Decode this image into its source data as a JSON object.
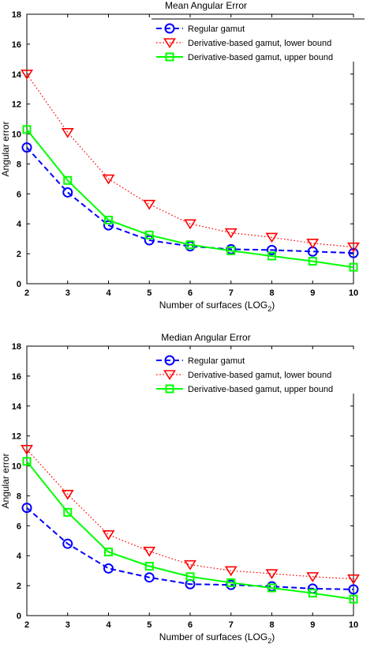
{
  "chart_data": [
    {
      "type": "line",
      "title": "Mean Angular Error",
      "xlabel": "Number of surfaces (LOG",
      "xlabel_sub": "2",
      "xlabel_end": ")",
      "ylabel": "Angular error",
      "xlim": [
        2,
        10
      ],
      "ylim": [
        0,
        18
      ],
      "x": [
        2,
        3,
        4,
        5,
        6,
        7,
        8,
        9,
        10
      ],
      "xticks": [
        "2",
        "3",
        "4",
        "5",
        "6",
        "7",
        "8",
        "9",
        "10"
      ],
      "yticks": [
        "0",
        "2",
        "4",
        "6",
        "8",
        "10",
        "12",
        "14",
        "16",
        "18"
      ],
      "grid": false,
      "legend_position": "top-right",
      "series": [
        {
          "name": "Regular gamut",
          "color": "#0000ff",
          "line": "dashed",
          "marker": "circle",
          "values": [
            9.1,
            6.1,
            3.9,
            2.9,
            2.5,
            2.3,
            2.25,
            2.15,
            2.05
          ]
        },
        {
          "name": "Derivative-based gamut, lower bound",
          "color": "#ff0000",
          "line": "dotted",
          "marker": "triangle-down",
          "values": [
            14.0,
            10.1,
            7.0,
            5.3,
            4.0,
            3.4,
            3.1,
            2.7,
            2.45
          ]
        },
        {
          "name": "Derivative-based gamut, upper bound",
          "color": "#00ff00",
          "line": "solid",
          "marker": "square",
          "values": [
            10.3,
            6.9,
            4.25,
            3.25,
            2.6,
            2.2,
            1.85,
            1.5,
            1.1
          ]
        }
      ]
    },
    {
      "type": "line",
      "title": "Median Angular Error",
      "xlabel": "Number of surfaces (LOG",
      "xlabel_sub": "2",
      "xlabel_end": ")",
      "ylabel": "Angular error",
      "xlim": [
        2,
        10
      ],
      "ylim": [
        0,
        18
      ],
      "x": [
        2,
        3,
        4,
        5,
        6,
        7,
        8,
        9,
        10
      ],
      "xticks": [
        "2",
        "3",
        "4",
        "5",
        "6",
        "7",
        "8",
        "9",
        "10"
      ],
      "yticks": [
        "0",
        "2",
        "4",
        "6",
        "8",
        "10",
        "12",
        "14",
        "16",
        "18"
      ],
      "grid": false,
      "legend_position": "top-right",
      "series": [
        {
          "name": "Regular gamut",
          "color": "#0000ff",
          "line": "dashed",
          "marker": "circle",
          "values": [
            7.2,
            4.8,
            3.15,
            2.55,
            2.1,
            2.05,
            1.95,
            1.8,
            1.75
          ]
        },
        {
          "name": "Derivative-based gamut, lower bound",
          "color": "#ff0000",
          "line": "dotted",
          "marker": "triangle-down",
          "values": [
            11.1,
            8.1,
            5.4,
            4.3,
            3.4,
            3.0,
            2.8,
            2.6,
            2.45
          ]
        },
        {
          "name": "Derivative-based gamut, upper bound",
          "color": "#00ff00",
          "line": "solid",
          "marker": "square",
          "values": [
            10.3,
            6.9,
            4.25,
            3.3,
            2.6,
            2.2,
            1.85,
            1.5,
            1.1
          ]
        }
      ]
    }
  ]
}
